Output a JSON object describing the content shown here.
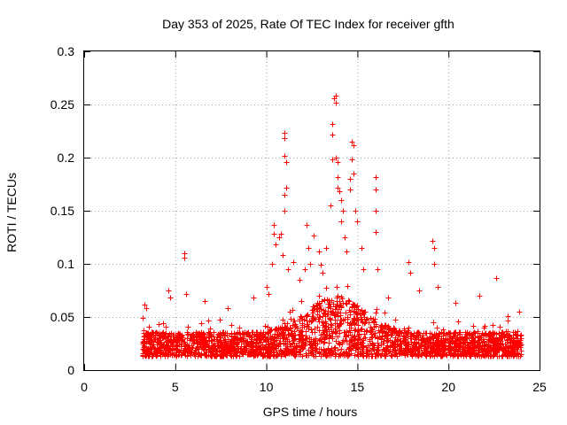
{
  "chart_data": {
    "type": "scatter",
    "title": "Day 353 of 2025, Rate Of TEC Index for receiver gfth",
    "xlabel": "GPS time / hours",
    "ylabel": "ROTI / TECUs",
    "xlim": [
      0,
      25
    ],
    "ylim": [
      0,
      0.3
    ],
    "xticks": [
      "0",
      "5",
      "10",
      "15",
      "20",
      "25"
    ],
    "yticks": [
      "0",
      "0.05",
      "0.1",
      "0.15",
      "0.2",
      "0.25",
      "0.3"
    ],
    "grid": true,
    "marker": "plus",
    "color": "#ff0000",
    "series": [
      {
        "values": [
          [
            3.3,
            0.062
          ],
          [
            3.4,
            0.058
          ],
          [
            4.6,
            0.075
          ],
          [
            4.7,
            0.068
          ],
          [
            5.5,
            0.11
          ],
          [
            5.5,
            0.106
          ],
          [
            5.6,
            0.072
          ],
          [
            6.6,
            0.065
          ],
          [
            7.9,
            0.058
          ],
          [
            9.3,
            0.068
          ],
          [
            10.0,
            0.078
          ],
          [
            10.1,
            0.072
          ],
          [
            10.3,
            0.1
          ],
          [
            10.4,
            0.137
          ],
          [
            10.4,
            0.128
          ],
          [
            10.5,
            0.118
          ],
          [
            10.7,
            0.125
          ],
          [
            10.8,
            0.128
          ],
          [
            10.9,
            0.108
          ],
          [
            11.0,
            0.223
          ],
          [
            11.0,
            0.218
          ],
          [
            11.0,
            0.202
          ],
          [
            11.1,
            0.196
          ],
          [
            11.1,
            0.172
          ],
          [
            11.0,
            0.165
          ],
          [
            11.0,
            0.15
          ],
          [
            11.2,
            0.095
          ],
          [
            11.5,
            0.102
          ],
          [
            11.8,
            0.085
          ],
          [
            12.1,
            0.095
          ],
          [
            12.2,
            0.137
          ],
          [
            12.3,
            0.115
          ],
          [
            12.4,
            0.1
          ],
          [
            12.6,
            0.127
          ],
          [
            12.9,
            0.112
          ],
          [
            13.0,
            0.099
          ],
          [
            13.1,
            0.092
          ],
          [
            13.3,
            0.115
          ],
          [
            13.5,
            0.155
          ],
          [
            13.6,
            0.232
          ],
          [
            13.6,
            0.222
          ],
          [
            13.6,
            0.198
          ],
          [
            13.7,
            0.256
          ],
          [
            13.8,
            0.258
          ],
          [
            13.8,
            0.252
          ],
          [
            13.8,
            0.2
          ],
          [
            13.9,
            0.196
          ],
          [
            13.9,
            0.182
          ],
          [
            13.9,
            0.172
          ],
          [
            14.0,
            0.168
          ],
          [
            14.1,
            0.16
          ],
          [
            14.2,
            0.15
          ],
          [
            14.1,
            0.14
          ],
          [
            14.3,
            0.125
          ],
          [
            14.4,
            0.112
          ],
          [
            14.6,
            0.18
          ],
          [
            14.6,
            0.17
          ],
          [
            14.7,
            0.215
          ],
          [
            14.8,
            0.212
          ],
          [
            14.7,
            0.198
          ],
          [
            14.8,
            0.185
          ],
          [
            14.9,
            0.15
          ],
          [
            15.0,
            0.14
          ],
          [
            15.2,
            0.115
          ],
          [
            15.3,
            0.095
          ],
          [
            16.0,
            0.182
          ],
          [
            16.0,
            0.17
          ],
          [
            16.0,
            0.15
          ],
          [
            16.0,
            0.13
          ],
          [
            16.1,
            0.095
          ],
          [
            16.7,
            0.068
          ],
          [
            17.8,
            0.102
          ],
          [
            17.9,
            0.092
          ],
          [
            18.4,
            0.075
          ],
          [
            19.1,
            0.122
          ],
          [
            19.2,
            0.115
          ],
          [
            19.2,
            0.1
          ],
          [
            19.4,
            0.078
          ],
          [
            20.4,
            0.063
          ],
          [
            21.7,
            0.07
          ],
          [
            22.6,
            0.087
          ],
          [
            23.9,
            0.055
          ]
        ]
      }
    ]
  }
}
